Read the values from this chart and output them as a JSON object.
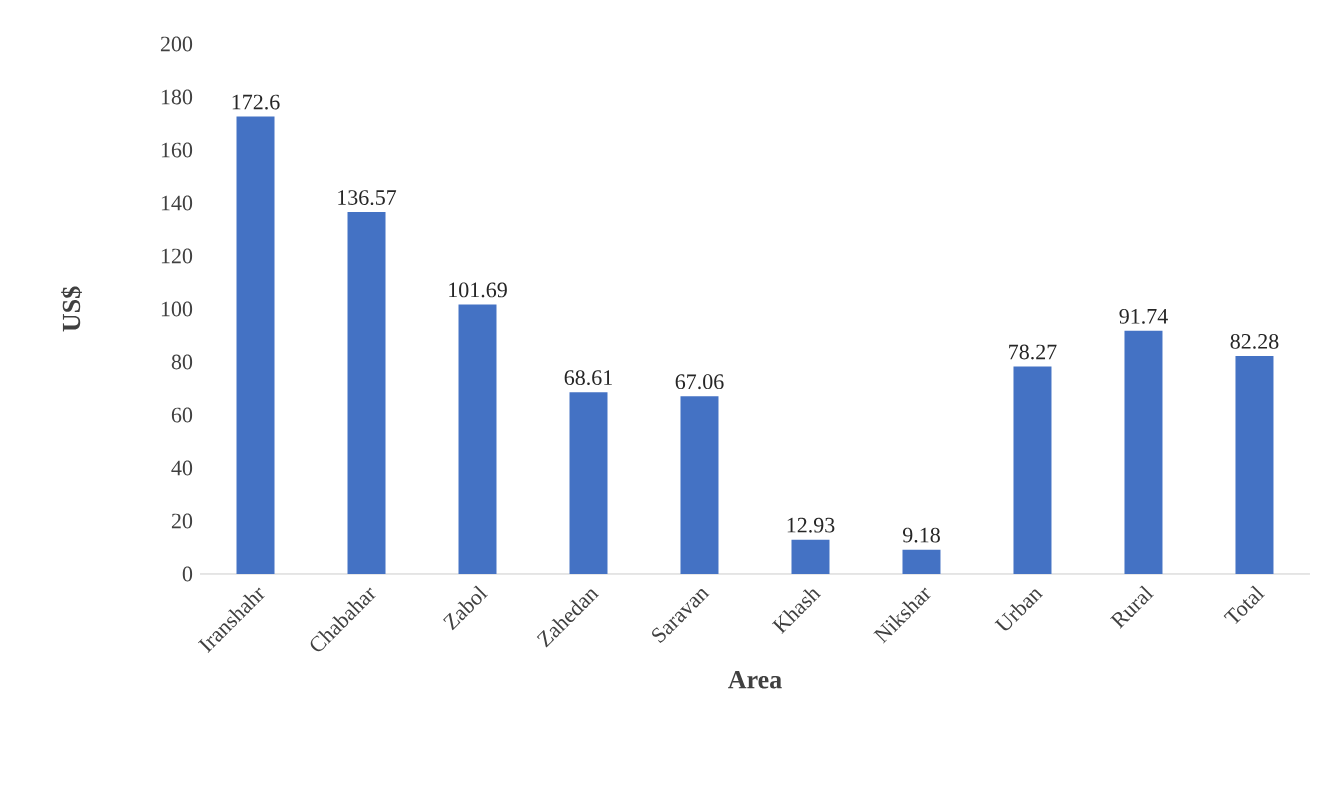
{
  "chart_data": {
    "type": "bar",
    "xlabel": "Area",
    "ylabel": "US$",
    "categories": [
      "Iranshahr",
      "Chabahar",
      "Zabol",
      "Zahedan",
      "Saravan",
      "Khash",
      "Nikshar",
      "Urban",
      "Rural",
      "Total"
    ],
    "values": [
      172.6,
      136.57,
      101.69,
      68.61,
      67.06,
      12.93,
      9.18,
      78.27,
      91.74,
      82.28
    ],
    "color": "#4472c4",
    "ylim": [
      0,
      200
    ],
    "yticks": [
      0,
      20,
      40,
      60,
      80,
      100,
      120,
      140,
      160,
      180,
      200
    ],
    "data_labels": true
  }
}
